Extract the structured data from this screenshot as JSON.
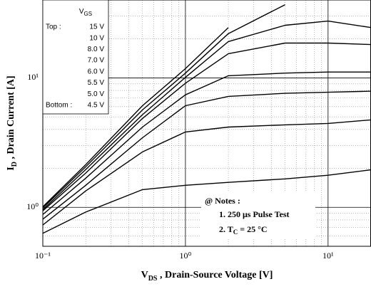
{
  "chart_data": {
    "type": "line",
    "log_x": true,
    "log_y": true,
    "grid": true,
    "x": [
      0.1,
      0.2,
      0.5,
      1,
      2,
      5,
      10,
      20
    ],
    "series": [
      {
        "name": "15 V",
        "color": "#000000",
        "values": [
          1.01,
          2.14,
          6.1,
          11.8,
          24.5,
          null,
          null,
          null
        ]
      },
      {
        "name": "10 V",
        "color": "#000000",
        "values": [
          0.99,
          2.06,
          5.66,
          10.9,
          22,
          36.8,
          null,
          null
        ]
      },
      {
        "name": "8.0 V",
        "color": "#000000",
        "values": [
          0.96,
          1.96,
          5.2,
          10.1,
          19.1,
          25.5,
          27.5,
          24.5
        ]
      },
      {
        "name": "7.0 V",
        "color": "#000000",
        "values": [
          0.94,
          1.84,
          4.86,
          9.1,
          15.4,
          18.6,
          18.6,
          18.1
        ]
      },
      {
        "name": "6.0 V",
        "color": "#000000",
        "values": [
          0.88,
          1.68,
          4.17,
          7.4,
          10.4,
          10.9,
          11.1,
          11.1
        ]
      },
      {
        "name": "5.5 V",
        "color": "#000000",
        "values": [
          0.81,
          1.48,
          3.45,
          6.1,
          7.2,
          7.6,
          7.75,
          7.9
        ]
      },
      {
        "name": "5.0 V",
        "color": "#000000",
        "values": [
          0.73,
          1.34,
          2.68,
          3.82,
          4.17,
          4.34,
          4.45,
          4.74
        ]
      },
      {
        "name": "4.5 V",
        "color": "#000000",
        "values": [
          0.63,
          0.92,
          1.37,
          1.48,
          1.56,
          1.66,
          1.77,
          1.95
        ]
      }
    ],
    "xlim": [
      0.1,
      20
    ],
    "ylim": [
      0.5,
      40
    ],
    "xticks": [
      {
        "value": 0.1,
        "label": "10⁻¹"
      },
      {
        "value": 1,
        "label": "10⁰"
      },
      {
        "value": 10,
        "label": "10¹"
      }
    ],
    "yticks": [
      {
        "value": 1,
        "label": "10⁰"
      },
      {
        "value": 10,
        "label": "10¹"
      }
    ],
    "xminorticks": [
      0.2,
      0.3,
      0.4,
      0.5,
      0.6,
      0.7,
      0.8,
      0.9,
      2,
      3,
      4,
      5,
      6,
      7,
      8,
      9
    ],
    "yminorticks": [
      0.6,
      0.7,
      0.8,
      0.9,
      2,
      3,
      4,
      5,
      6,
      7,
      8,
      9,
      20,
      30
    ],
    "xlabel": {
      "main": "V",
      "sub": "DS",
      "rest": " , Drain-Source Voltage  [V]"
    },
    "ylabel": {
      "main": "I",
      "sub": "D",
      "rest": " , Drain Current  [A]"
    },
    "legend": {
      "position": "upper left",
      "title": {
        "main": "V",
        "sub": "GS"
      },
      "top": "Top :",
      "bottom": "Bottom :"
    },
    "notes": {
      "title": "@ Notes :",
      "items": [
        {
          "text": "1. 250 μs Pulse Test"
        },
        {
          "text": "2. T",
          "sub": "C",
          "rest": " = 25 °C"
        }
      ]
    }
  }
}
